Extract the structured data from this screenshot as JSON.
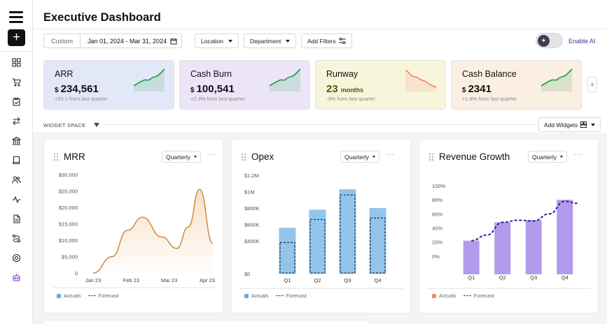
{
  "page": {
    "title": "Executive Dashboard"
  },
  "filters": {
    "custom_label": "Custom",
    "date_range": "Jan  01, 2024 - Mar 31, 2024",
    "location": "Location",
    "department": "Department",
    "add_filters": "Add Filters"
  },
  "ai": {
    "label": "Enable AI"
  },
  "sidebar": {
    "icons": [
      "dashboard-icon",
      "cart-icon",
      "clipboard-icon",
      "transfer-icon",
      "bank-icon",
      "book-icon",
      "users-icon",
      "activity-icon",
      "document-icon",
      "route-icon",
      "settings-icon",
      "bot-icon"
    ]
  },
  "kpis": [
    {
      "title": "ARR",
      "currency": "$",
      "value": "234,561",
      "unit": "",
      "sub": "+20.1 from last quarter",
      "trend": "up",
      "bg": "#e3e8f9",
      "line": "#1a9e45"
    },
    {
      "title": "Cash Burn",
      "currency": "$",
      "value": "100,541",
      "unit": "",
      "sub": "+2.3% from last quarter",
      "trend": "up",
      "bg": "#ece5f8",
      "line": "#1a9e45"
    },
    {
      "title": "Runway",
      "currency": "",
      "value": "23",
      "unit": "months",
      "sub": "-3% from last quarter",
      "trend": "down",
      "bg": "#f7f6dc",
      "line": "#f07d6a"
    },
    {
      "title": "Cash Balance",
      "currency": "$",
      "value": "2341",
      "unit": "",
      "sub": "+1.8% from last quarter",
      "trend": "up",
      "bg": "#fbeee2",
      "line": "#1a9e45"
    }
  ],
  "widget_space": {
    "label": "WIDGET SPACE",
    "add_widgets": "Add Widgets"
  },
  "legend": {
    "actuals": "Actuals",
    "forecast": "Forecast"
  },
  "chart_data": [
    {
      "type": "line",
      "title": "MRR",
      "period": "Quarterly",
      "categories": [
        "Jan 23",
        "Feb 23",
        "Mar 23",
        "Apr 23"
      ],
      "y_ticks": [
        "$30,000",
        "$25,000",
        "$20,000",
        "$15,000",
        "$10,000",
        "$5,000",
        "0"
      ],
      "ylim": [
        0,
        30000
      ],
      "series": [
        {
          "name": "Actuals",
          "x": [
            0.1,
            0.6,
            1.0,
            1.4,
            1.9,
            2.3,
            2.6,
            2.9,
            3.25
          ],
          "values": [
            0,
            5000,
            13000,
            17000,
            11000,
            7500,
            14000,
            25500,
            9000
          ]
        }
      ]
    },
    {
      "type": "bar",
      "title": "Opex",
      "period": "Quarterly",
      "categories": [
        "Q1",
        "Q2",
        "Q3",
        "Q4"
      ],
      "y_ticks": [
        "$1.2M",
        "$1M",
        "$800K",
        "$600K",
        "$400K",
        "$0"
      ],
      "y_tick_values": [
        1200,
        1000,
        800,
        600,
        400,
        0
      ],
      "ylim": [
        0,
        1200
      ],
      "series": [
        {
          "name": "Actuals",
          "values": [
            560,
            780,
            1030,
            800
          ]
        },
        {
          "name": "Forecast",
          "values": [
            380,
            660,
            960,
            680
          ]
        }
      ]
    },
    {
      "type": "bar",
      "title": "Revenue Growth",
      "period": "Quarterly",
      "categories": [
        "Q1",
        "Q2",
        "Q3",
        "Q4"
      ],
      "y_ticks": [
        "100%",
        "80%",
        "60%",
        "40%",
        "20%",
        "0%"
      ],
      "ylim": [
        -20,
        100
      ],
      "series": [
        {
          "name": "Actuals",
          "values": [
            22,
            48,
            51,
            80
          ]
        },
        {
          "name": "Forecast",
          "x": [
            0.0,
            0.5,
            1.0,
            1.5,
            2.0,
            2.5,
            3.0,
            3.4
          ],
          "values": [
            22,
            30,
            48,
            51,
            50,
            60,
            78,
            75
          ]
        }
      ]
    }
  ]
}
